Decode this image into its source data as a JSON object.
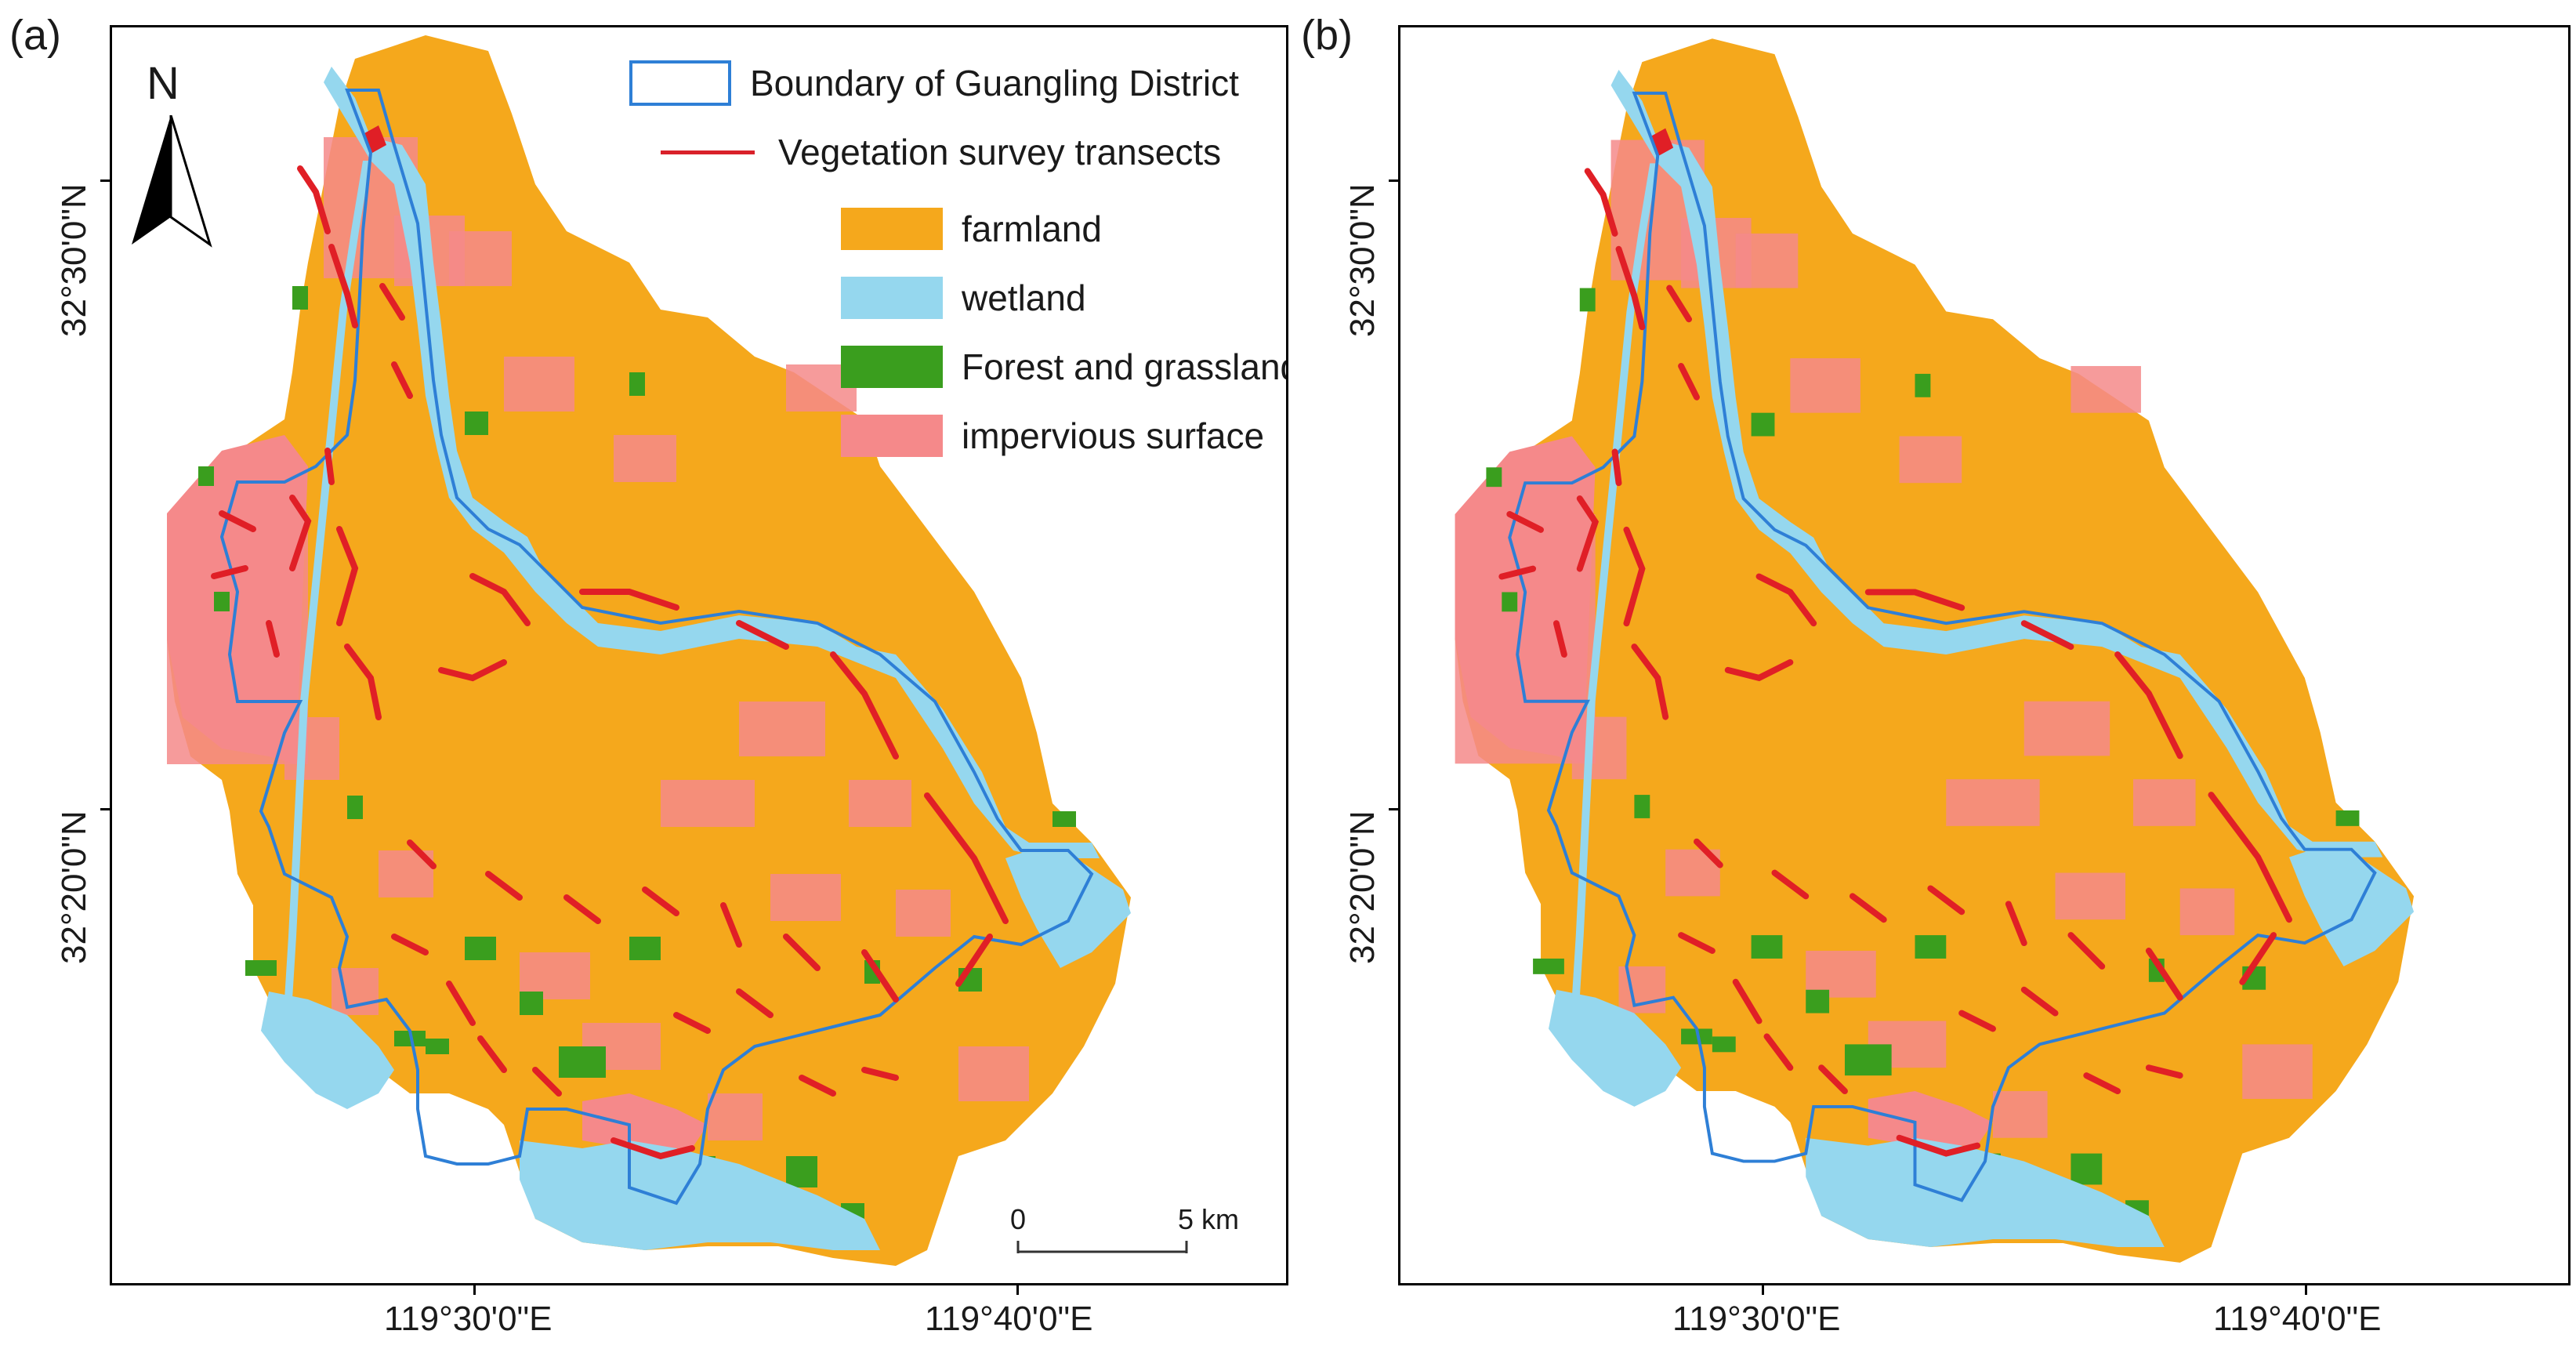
{
  "panels": [
    {
      "id": "a",
      "label": "(a)"
    },
    {
      "id": "b",
      "label": "(b)"
    }
  ],
  "axes": {
    "lat_ticks": [
      "32°30'0\"N",
      "32°20'0\"N"
    ],
    "lon_ticks": [
      "119°30'0\"E",
      "119°40'0\"E"
    ]
  },
  "legend": {
    "boundary": "Boundary of Guangling District",
    "transects": "Vegetation survey transects",
    "classes": [
      {
        "label": "farmland",
        "color": "#f5a81c"
      },
      {
        "label": "wetland",
        "color": "#95d7ee"
      },
      {
        "label": "Forest and grassland",
        "color": "#3a9e1e"
      },
      {
        "label": "impervious surface",
        "color": "#f5898a"
      }
    ],
    "boundary_color": "#2e7fd6",
    "transect_color": "#e01f26"
  },
  "north_arrow": {
    "letter": "N"
  },
  "scale_bar": {
    "start": "0",
    "end": "5",
    "unit": "km"
  }
}
